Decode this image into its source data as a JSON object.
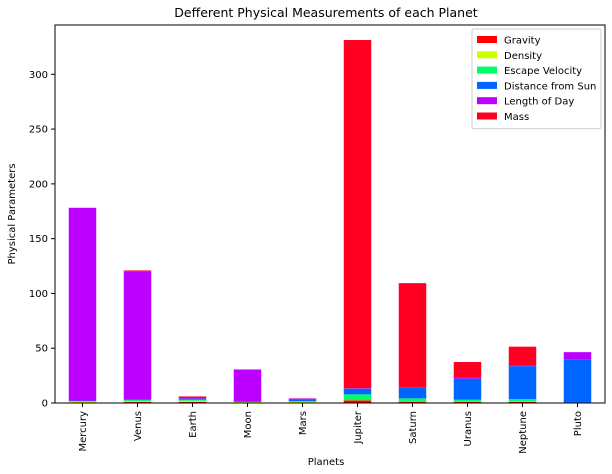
{
  "chart_data": {
    "type": "bar",
    "stacked": true,
    "title": "Defferent Physical Measurements of each Planet",
    "xlabel": "Planets",
    "ylabel": "Physical Parameters",
    "ylim": [
      0,
      345
    ],
    "yticks": [
      0,
      50,
      100,
      150,
      200,
      250,
      300
    ],
    "legend_position": "top-right",
    "grid": false,
    "categories": [
      "Mercury",
      "Venus",
      "Earth",
      "Moon",
      "Mars",
      "Jupiter",
      "Saturn",
      "Uranus",
      "Neptune",
      "Pluto"
    ],
    "series": [
      {
        "name": "Gravity",
        "color": "#ff0000",
        "values": [
          0.4,
          0.9,
          1.0,
          0.2,
          0.4,
          2.4,
          0.9,
          0.9,
          1.1,
          0.1
        ]
      },
      {
        "name": "Density",
        "color": "#ccff00",
        "values": [
          1.0,
          0.9,
          1.0,
          0.6,
          0.7,
          0.2,
          0.1,
          0.2,
          0.3,
          0.3
        ]
      },
      {
        "name": "Escape Velocity",
        "color": "#00ff66",
        "values": [
          0.4,
          0.9,
          1.0,
          0.2,
          0.5,
          5.3,
          3.2,
          1.9,
          2.1,
          0.1
        ]
      },
      {
        "name": "Distance from Sun",
        "color": "#0066ff",
        "values": [
          0.4,
          0.7,
          1.0,
          0.1,
          1.5,
          5.2,
          9.6,
          19.2,
          30.1,
          39.5
        ]
      },
      {
        "name": "Length of Day",
        "color": "#bb00ff",
        "values": [
          175.9,
          116.8,
          1.0,
          29.5,
          1.0,
          0.4,
          0.4,
          0.7,
          0.7,
          6.4
        ]
      },
      {
        "name": "Mass",
        "color": "#ff0022",
        "values": [
          0.1,
          0.8,
          1.0,
          0.0,
          0.1,
          317.8,
          95.2,
          14.5,
          17.1,
          0.0
        ]
      }
    ]
  }
}
